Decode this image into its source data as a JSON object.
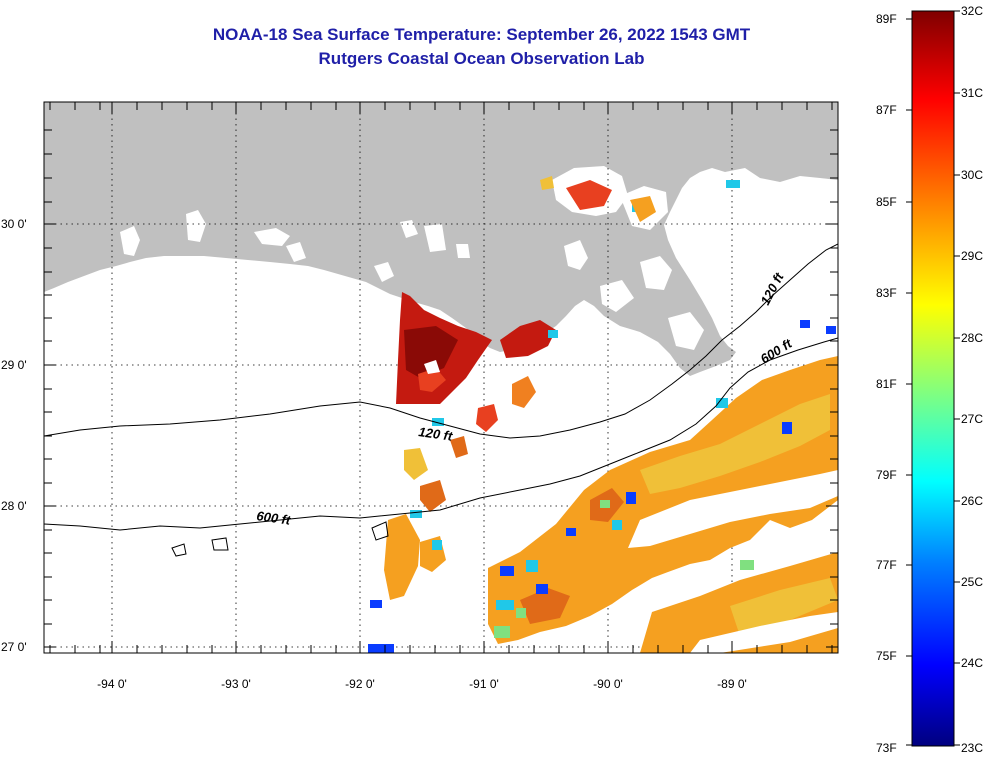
{
  "title": {
    "line1": "NOAA-18 Sea Surface Temperature:  September 26, 2022 1543 GMT",
    "line2": "Rutgers Coastal Ocean Observation Lab"
  },
  "map": {
    "lat_labels": [
      "30 0'",
      "29 0'",
      "28 0'",
      "27 0'"
    ],
    "lon_labels": [
      "-94 0'",
      "-93 0'",
      "-92 0'",
      "-91 0'",
      "-90 0'",
      "-89 0'"
    ],
    "contour_labels": [
      "120 ft",
      "120 ft",
      "600 ft",
      "600 ft"
    ]
  },
  "colorbar": {
    "fahrenheit_labels": [
      "89F",
      "87F",
      "85F",
      "83F",
      "81F",
      "79F",
      "77F",
      "75F",
      "73F"
    ],
    "celsius_labels": [
      "32C",
      "31C",
      "30C",
      "29C",
      "28C",
      "27C",
      "26C",
      "25C",
      "24C",
      "23C"
    ],
    "colors": [
      "#00007f",
      "#0000ff",
      "#0080ff",
      "#00ffff",
      "#80ff80",
      "#ffff00",
      "#ff8000",
      "#ff0000",
      "#7f0000"
    ]
  },
  "colors": {
    "land": "#c0c0c0",
    "title": "#1f1fa8",
    "sst_warm": "#f5a020",
    "sst_hot": "#c41a10"
  }
}
